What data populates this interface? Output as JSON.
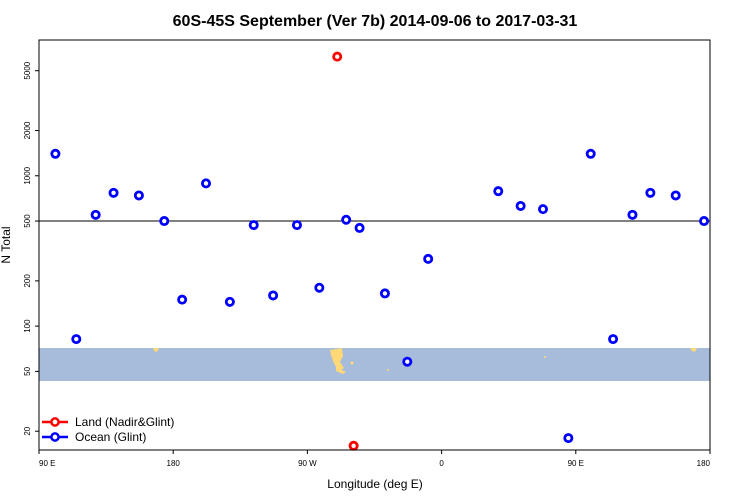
{
  "chart_data": {
    "type": "scatter",
    "title": "60S-45S September (Ver 7b)   2014-09-06 to 2017-03-31",
    "xlabel": "Longitude (deg E)",
    "ylabel": "N Total",
    "x_ticks": [
      {
        "value": 90,
        "label": "90 E"
      },
      {
        "value": 180,
        "label": "180"
      },
      {
        "value": 270,
        "label": "90 W"
      },
      {
        "value": 360,
        "label": "0"
      },
      {
        "value": 450,
        "label": "90 E"
      },
      {
        "value": 540,
        "label": "180"
      }
    ],
    "xlim": [
      90,
      540
    ],
    "y_scale": "log",
    "y_ticks": [
      20,
      50,
      100,
      200,
      500,
      1000,
      2000,
      5000
    ],
    "ylim": [
      15,
      8000
    ],
    "reference_line": 500,
    "colors": {
      "land": "#ff0000",
      "ocean": "#0000ff",
      "map_band": "#a7bcdb",
      "map_land": "#ffd878"
    },
    "legend": {
      "position": "bottom-left",
      "entries": [
        {
          "label": "Land (Nadir&Glint)",
          "color": "#ff0000"
        },
        {
          "label": "Ocean (Glint)",
          "color": "#0000ff"
        }
      ]
    },
    "series": [
      {
        "name": "Land (Nadir&Glint)",
        "color": "#ff0000",
        "points": [
          {
            "x": 290,
            "y": 6200
          },
          {
            "x": 301,
            "y": 16
          }
        ]
      },
      {
        "name": "Ocean (Glint)",
        "color": "#0000ff",
        "points": [
          {
            "x": 101,
            "y": 1400
          },
          {
            "x": 115,
            "y": 82
          },
          {
            "x": 128,
            "y": 550
          },
          {
            "x": 140,
            "y": 770
          },
          {
            "x": 157,
            "y": 740
          },
          {
            "x": 174,
            "y": 500
          },
          {
            "x": 186,
            "y": 150
          },
          {
            "x": 202,
            "y": 890
          },
          {
            "x": 218,
            "y": 145
          },
          {
            "x": 234,
            "y": 470
          },
          {
            "x": 247,
            "y": 160
          },
          {
            "x": 263,
            "y": 470
          },
          {
            "x": 278,
            "y": 180
          },
          {
            "x": 296,
            "y": 510
          },
          {
            "x": 305,
            "y": 450
          },
          {
            "x": 322,
            "y": 165
          },
          {
            "x": 337,
            "y": 58
          },
          {
            "x": 351,
            "y": 280
          },
          {
            "x": 398,
            "y": 790
          },
          {
            "x": 413,
            "y": 630
          },
          {
            "x": 428,
            "y": 600
          },
          {
            "x": 445,
            "y": 18
          },
          {
            "x": 460,
            "y": 1400
          },
          {
            "x": 475,
            "y": 82
          },
          {
            "x": 488,
            "y": 550
          },
          {
            "x": 500,
            "y": 770
          },
          {
            "x": 517,
            "y": 740
          },
          {
            "x": 536,
            "y": 500
          }
        ]
      }
    ]
  }
}
